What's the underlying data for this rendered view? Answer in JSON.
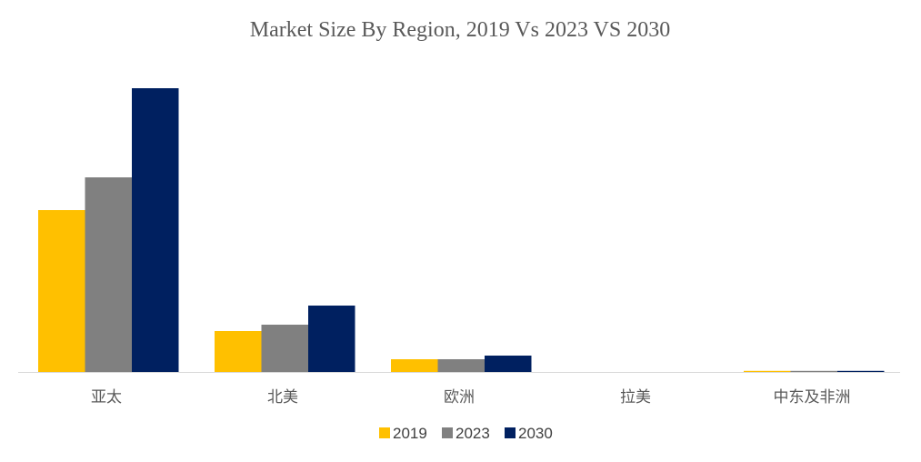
{
  "chart_data": {
    "type": "bar",
    "title": "Market Size By Region, 2019 Vs 2023 VS 2030",
    "xlabel": "",
    "ylabel": "",
    "categories": [
      "亚太",
      "北美",
      "欧洲",
      "拉美",
      "中东及非洲"
    ],
    "series": [
      {
        "name": "2019",
        "color": "#FFC000",
        "values": [
          178,
          45,
          14,
          0,
          1
        ]
      },
      {
        "name": "2023",
        "color": "#808080",
        "values": [
          214,
          52,
          14,
          0,
          1
        ]
      },
      {
        "name": "2030",
        "color": "#002060",
        "values": [
          312,
          73,
          18,
          0,
          1
        ]
      }
    ],
    "ylim": [
      0,
      330
    ],
    "grid": false,
    "legend_position": "bottom-center",
    "axis_color": "#D9D9D9"
  }
}
